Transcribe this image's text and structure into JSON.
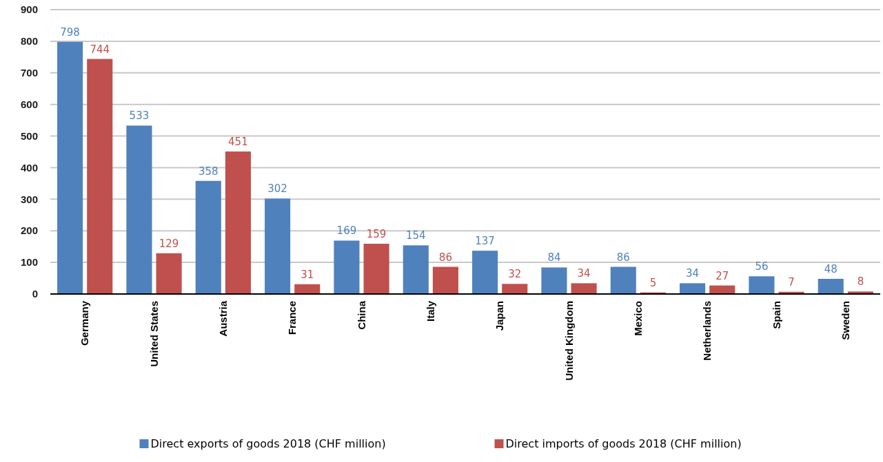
{
  "chart_data": {
    "type": "bar",
    "categories": [
      "Germany",
      "United States",
      "Austria",
      "France",
      "China",
      "Italy",
      "Japan",
      "United Kingdom",
      "Mexico",
      "Netherlands",
      "Spain",
      "Sweden"
    ],
    "series": [
      {
        "name": "Direct exports of goods 2018 (CHF million)",
        "color": "#4f81bd",
        "values": [
          798,
          533,
          358,
          302,
          169,
          154,
          137,
          84,
          86,
          34,
          56,
          48
        ]
      },
      {
        "name": "Direct imports of goods 2018 (CHF million)",
        "color": "#c0504d",
        "values": [
          744,
          129,
          451,
          31,
          159,
          86,
          32,
          34,
          5,
          27,
          7,
          8
        ]
      }
    ],
    "ylim": [
      0,
      900
    ],
    "yticks": [
      0,
      100,
      200,
      300,
      400,
      500,
      600,
      700,
      800,
      900
    ],
    "grid": "y",
    "legend": "bottom",
    "data_labels": true
  }
}
